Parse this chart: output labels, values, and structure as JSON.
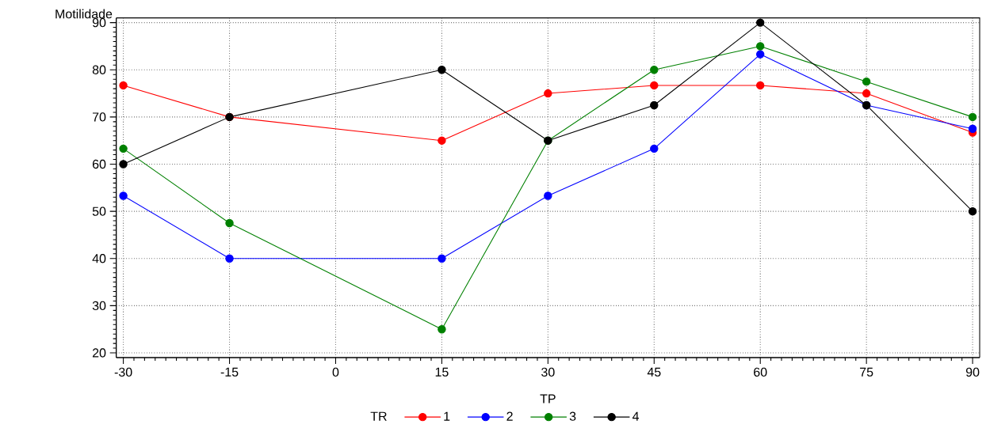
{
  "chart_data": {
    "type": "line",
    "xlabel": "TP",
    "ylabel": "Motilidade",
    "legend_title": "TR",
    "x": [
      -30,
      -15,
      15,
      30,
      45,
      60,
      75,
      90
    ],
    "series": [
      {
        "name": "1",
        "color": "#ff0000",
        "values": [
          76.7,
          70,
          65,
          75,
          76.7,
          76.7,
          75,
          66.7
        ]
      },
      {
        "name": "2",
        "color": "#0000ff",
        "values": [
          53.3,
          40,
          40,
          53.3,
          63.3,
          83.3,
          72.5,
          67.5
        ]
      },
      {
        "name": "3",
        "color": "#008000",
        "values": [
          63.3,
          47.5,
          25,
          65,
          80,
          85,
          77.5,
          70
        ]
      },
      {
        "name": "4",
        "color": "#000000",
        "values": [
          60,
          70,
          80,
          65,
          72.5,
          90,
          72.5,
          50
        ]
      }
    ],
    "xlim": [
      -31,
      91
    ],
    "ylim": [
      19,
      91
    ],
    "xticks": [
      -30,
      -15,
      0,
      15,
      30,
      45,
      60,
      75,
      90
    ],
    "yticks": [
      20,
      30,
      40,
      50,
      60,
      70,
      80,
      90
    ],
    "grid": true,
    "legend": "bottom",
    "marker": "circle",
    "line_style": "solid"
  }
}
